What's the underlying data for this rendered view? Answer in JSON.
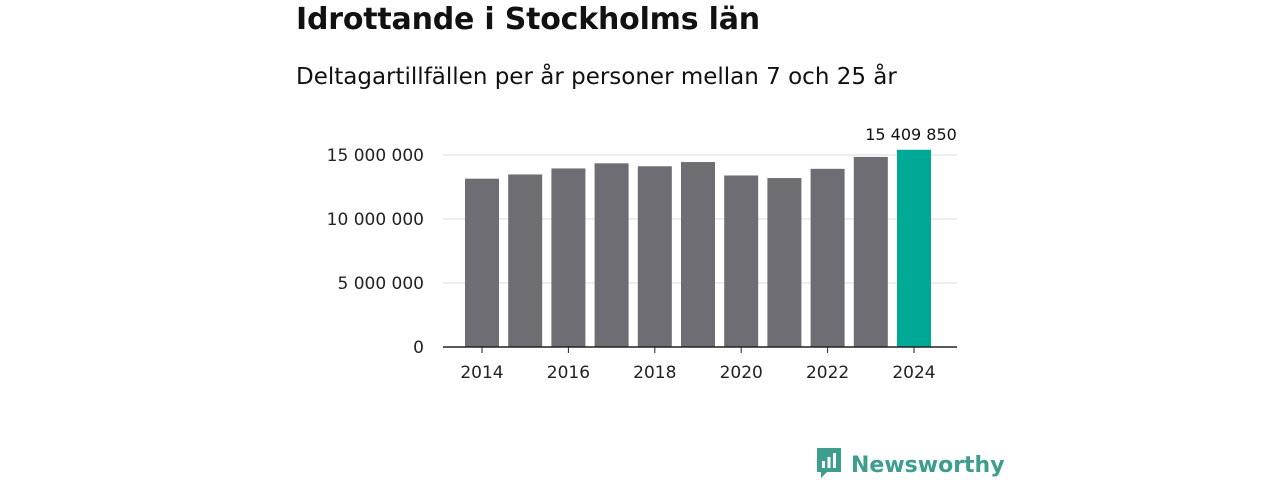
{
  "chart_data": {
    "type": "bar",
    "title": "Idrottande i Stockholms län",
    "subtitle": "Deltagartillfällen per år personer mellan 7 och 25 år",
    "categories": [
      2014,
      2015,
      2016,
      2017,
      2018,
      2019,
      2020,
      2021,
      2022,
      2023,
      2024
    ],
    "values": [
      13150000,
      13480000,
      13950000,
      14350000,
      14120000,
      14450000,
      13400000,
      13200000,
      13920000,
      14850000,
      15409850
    ],
    "ylim": [
      0,
      15500000
    ],
    "yticks": [
      0,
      5000000,
      10000000,
      15000000
    ],
    "ytick_labels": [
      "0",
      "5 000 000",
      "10 000 000",
      "15 000 000"
    ],
    "xticks": [
      2014,
      2016,
      2018,
      2020,
      2022,
      2024
    ],
    "xtick_labels": [
      "2014",
      "2016",
      "2018",
      "2020",
      "2022",
      "2024"
    ],
    "highlight_index": 10,
    "highlight_label": "15 409 850",
    "xlabel": "",
    "ylabel": "",
    "grid": true
  },
  "colors": {
    "bar": "#6e6d73",
    "highlight": "#00a896",
    "grid": "#dddddd",
    "axis": "#222222"
  },
  "brand": {
    "name": "Newsworthy",
    "icon": "bar-chart-badge-icon"
  }
}
